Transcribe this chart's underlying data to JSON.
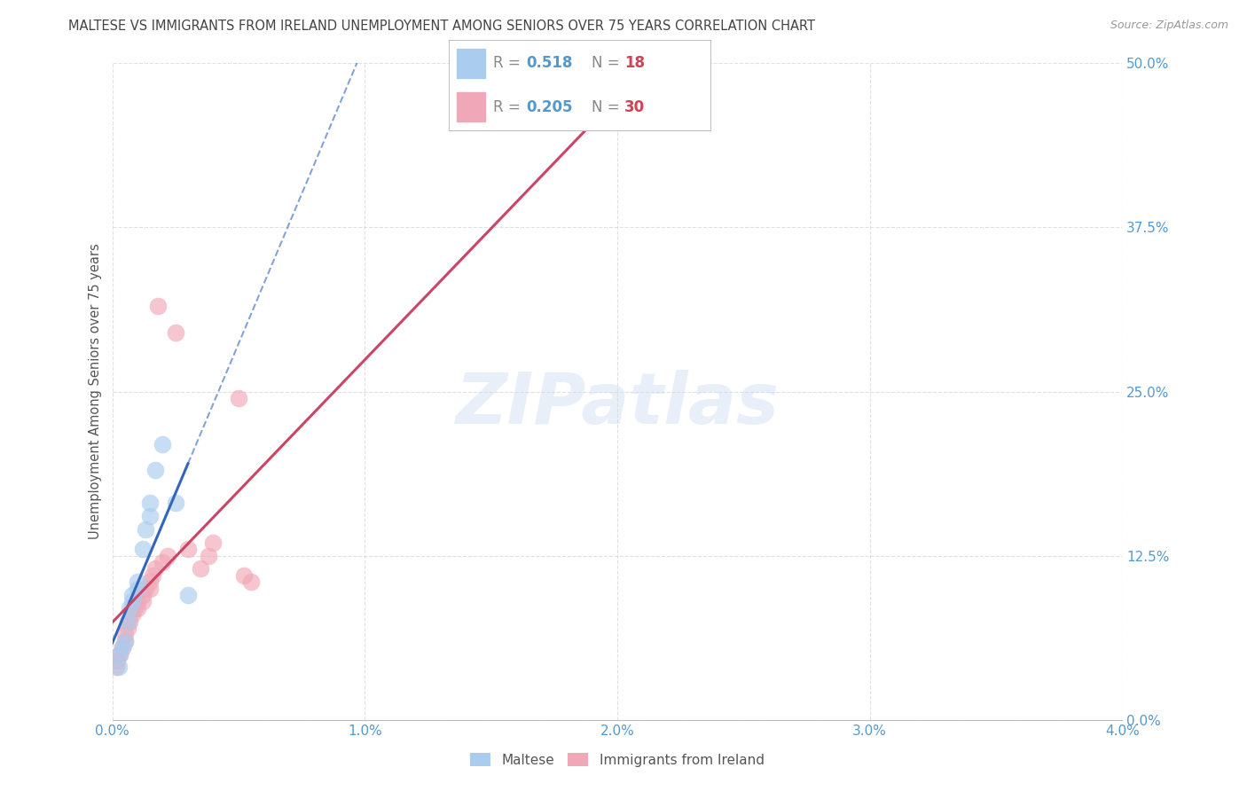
{
  "title": "MALTESE VS IMMIGRANTS FROM IRELAND UNEMPLOYMENT AMONG SENIORS OVER 75 YEARS CORRELATION CHART",
  "source": "Source: ZipAtlas.com",
  "ylabel": "Unemployment Among Seniors over 75 years",
  "xlim": [
    0.0,
    0.04
  ],
  "ylim": [
    0.0,
    0.5
  ],
  "xticks": [
    0.0,
    0.01,
    0.02,
    0.03,
    0.04
  ],
  "xtick_labels": [
    "0.0%",
    "1.0%",
    "2.0%",
    "3.0%",
    "4.0%"
  ],
  "ytick_labels": [
    "0.0%",
    "12.5%",
    "25.0%",
    "37.5%",
    "50.0%"
  ],
  "yticks": [
    0.0,
    0.125,
    0.25,
    0.375,
    0.5
  ],
  "maltese_x": [
    0.00025,
    0.0003,
    0.0004,
    0.0005,
    0.0006,
    0.0007,
    0.0008,
    0.0008,
    0.001,
    0.001,
    0.0012,
    0.0013,
    0.0015,
    0.0015,
    0.0017,
    0.002,
    0.0025,
    0.003
  ],
  "maltese_y": [
    0.04,
    0.05,
    0.055,
    0.06,
    0.075,
    0.085,
    0.09,
    0.095,
    0.1,
    0.105,
    0.13,
    0.145,
    0.155,
    0.165,
    0.19,
    0.21,
    0.165,
    0.095
  ],
  "ireland_x": [
    0.00015,
    0.0002,
    0.0003,
    0.0004,
    0.0005,
    0.0005,
    0.0006,
    0.0007,
    0.0008,
    0.0009,
    0.001,
    0.001,
    0.0012,
    0.0012,
    0.0013,
    0.0015,
    0.0015,
    0.0016,
    0.0017,
    0.0018,
    0.002,
    0.0022,
    0.0025,
    0.003,
    0.0035,
    0.0038,
    0.004,
    0.005,
    0.0052,
    0.0055
  ],
  "ireland_y": [
    0.04,
    0.045,
    0.05,
    0.055,
    0.06,
    0.065,
    0.07,
    0.075,
    0.08,
    0.085,
    0.085,
    0.09,
    0.09,
    0.095,
    0.1,
    0.1,
    0.105,
    0.11,
    0.115,
    0.315,
    0.12,
    0.125,
    0.295,
    0.13,
    0.115,
    0.125,
    0.135,
    0.245,
    0.11,
    0.105
  ],
  "maltese_color": "#aaccee",
  "ireland_color": "#f0a8b8",
  "maltese_line_color": "#3366bb",
  "ireland_line_color": "#cc4466",
  "watermark": "ZIPatlas",
  "background_color": "#ffffff",
  "grid_color": "#cccccc",
  "title_color": "#444444",
  "axis_label_color": "#555555",
  "tick_color": "#5599cc",
  "legend_r_color": "#5599cc",
  "legend_n_color": "#cc4455"
}
